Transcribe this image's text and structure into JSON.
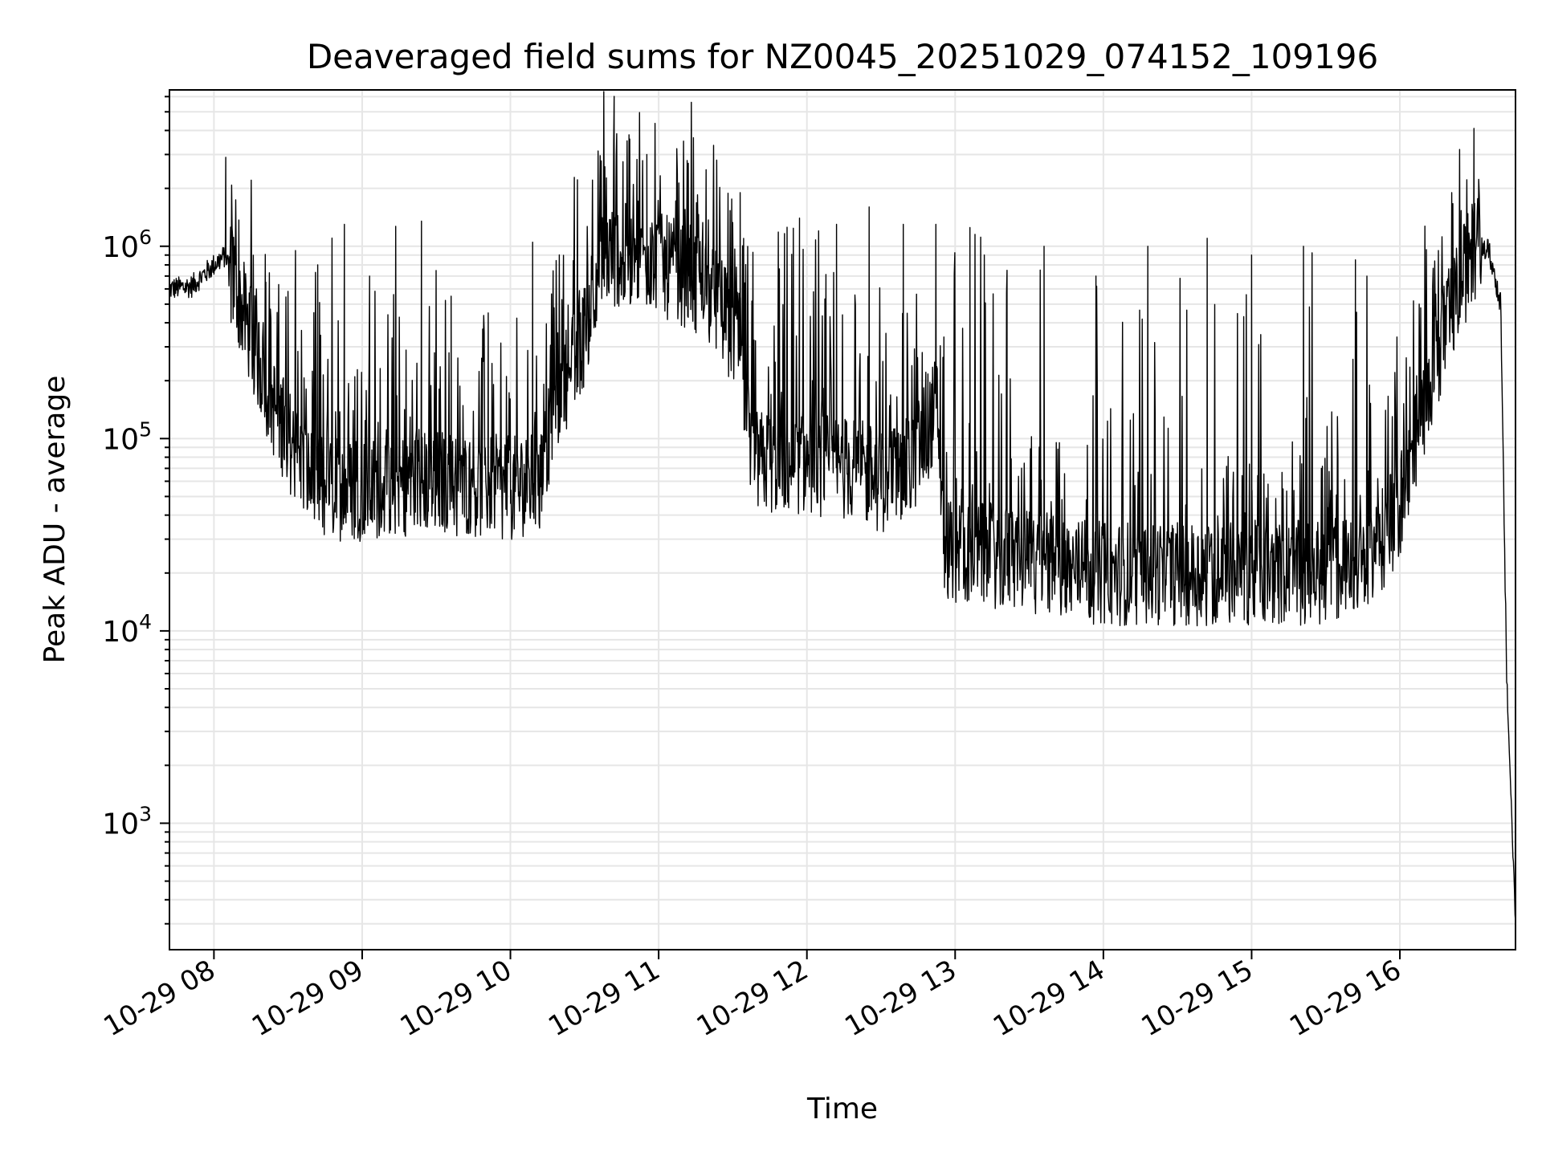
{
  "chart_data": {
    "type": "line",
    "title": "Deaveraged field sums for NZ0045_20251029_074152_109196",
    "xlabel": "Time",
    "ylabel": "Peak ADU - average",
    "yscale": "log",
    "ylim": [
      220,
      6500000
    ],
    "xlim_hours": [
      7.7,
      16.78
    ],
    "x_ticks": [
      {
        "hour": 8,
        "label": "10-29 08"
      },
      {
        "hour": 9,
        "label": "10-29 09"
      },
      {
        "hour": 10,
        "label": "10-29 10"
      },
      {
        "hour": 11,
        "label": "10-29 11"
      },
      {
        "hour": 12,
        "label": "10-29 12"
      },
      {
        "hour": 13,
        "label": "10-29 13"
      },
      {
        "hour": 14,
        "label": "10-29 14"
      },
      {
        "hour": 15,
        "label": "10-29 15"
      },
      {
        "hour": 16,
        "label": "10-29 16"
      }
    ],
    "y_ticks": [
      {
        "value": 1000,
        "base": "10",
        "exp": "3"
      },
      {
        "value": 10000,
        "base": "10",
        "exp": "4"
      },
      {
        "value": 100000,
        "base": "10",
        "exp": "5"
      },
      {
        "value": 1000000,
        "base": "10",
        "exp": "6"
      }
    ],
    "grid": true,
    "line_color": "#000000",
    "grid_color": "#e6e6e6",
    "series": [
      {
        "name": "Peak ADU - average",
        "envelope_x_hours": [
          7.7,
          7.85,
          8.0,
          8.08,
          8.2,
          8.4,
          8.6,
          8.7,
          9.0,
          9.5,
          10.0,
          10.2,
          10.3,
          10.5,
          10.6,
          10.8,
          11.0,
          11.2,
          11.4,
          11.55,
          11.62,
          12.0,
          12.3,
          12.5,
          12.7,
          12.88,
          12.93,
          13.2,
          13.6,
          14.0,
          14.5,
          15.0,
          15.5,
          15.8,
          16.0,
          16.2,
          16.4,
          16.5,
          16.6,
          16.68,
          16.72,
          16.78
        ],
        "envelope_y": [
          600000,
          620000,
          800000,
          900000,
          450000,
          150000,
          70000,
          55000,
          55000,
          60000,
          55000,
          60000,
          150000,
          350000,
          900000,
          900000,
          800000,
          700000,
          500000,
          300000,
          75000,
          75000,
          70000,
          60000,
          70000,
          150000,
          27000,
          25000,
          22000,
          20000,
          20000,
          20000,
          20000,
          22000,
          45000,
          200000,
          600000,
          1000000,
          950000,
          500000,
          6000,
          300
        ],
        "spikes": [
          {
            "hour": 8.08,
            "value": 2900000
          },
          {
            "hour": 8.35,
            "value": 650000
          },
          {
            "hour": 8.55,
            "value": 950000
          },
          {
            "hour": 8.7,
            "value": 800000
          },
          {
            "hour": 8.88,
            "value": 1300000
          },
          {
            "hour": 9.05,
            "value": 700000
          },
          {
            "hour": 9.4,
            "value": 1350000
          },
          {
            "hour": 9.6,
            "value": 550000
          },
          {
            "hour": 9.85,
            "value": 450000
          },
          {
            "hour": 10.15,
            "value": 1050000
          },
          {
            "hour": 10.7,
            "value": 3400000
          },
          {
            "hour": 10.8,
            "value": 3800000
          },
          {
            "hour": 10.92,
            "value": 3000000
          },
          {
            "hour": 11.2,
            "value": 2700000
          },
          {
            "hour": 11.32,
            "value": 2500000
          },
          {
            "hour": 11.55,
            "value": 1900000
          },
          {
            "hour": 11.95,
            "value": 1400000
          },
          {
            "hour": 12.2,
            "value": 1300000
          },
          {
            "hour": 12.42,
            "value": 1600000
          },
          {
            "hour": 12.65,
            "value": 1300000
          },
          {
            "hour": 12.87,
            "value": 1300000
          },
          {
            "hour": 13.1,
            "value": 1250000
          },
          {
            "hour": 13.35,
            "value": 750000
          },
          {
            "hour": 13.6,
            "value": 1000000
          },
          {
            "hour": 13.95,
            "value": 700000
          },
          {
            "hour": 14.3,
            "value": 1000000
          },
          {
            "hour": 14.7,
            "value": 1100000
          },
          {
            "hour": 15.0,
            "value": 900000
          },
          {
            "hour": 15.35,
            "value": 1000000
          },
          {
            "hour": 15.7,
            "value": 850000
          },
          {
            "hour": 16.35,
            "value": 1900000
          },
          {
            "hour": 16.5,
            "value": 4100000
          }
        ]
      }
    ]
  }
}
